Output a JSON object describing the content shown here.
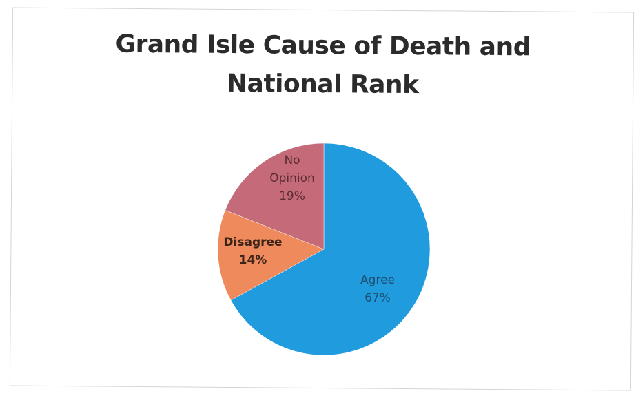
{
  "chart_data": {
    "type": "pie",
    "title": "Grand Isle Cause of Death and National Rank",
    "series": [
      {
        "label_lines": [
          "Agree",
          "67%"
        ],
        "category": "Agree",
        "value": 67,
        "color": "#1f9bde",
        "label_color": "#1d4f73"
      },
      {
        "label_lines": [
          "Disagree",
          "14%"
        ],
        "category": "Disagree",
        "value": 14,
        "color": "#ee8a5c",
        "label_color": "#3a2418"
      },
      {
        "label_lines": [
          "No",
          "Opinion",
          "19%"
        ],
        "category": "No Opinion",
        "value": 19,
        "color": "#c46a78",
        "label_color": "#5a2c33"
      }
    ],
    "legend": "none",
    "grid": false,
    "start_angle_deg": 0,
    "direction": "clockwise"
  }
}
